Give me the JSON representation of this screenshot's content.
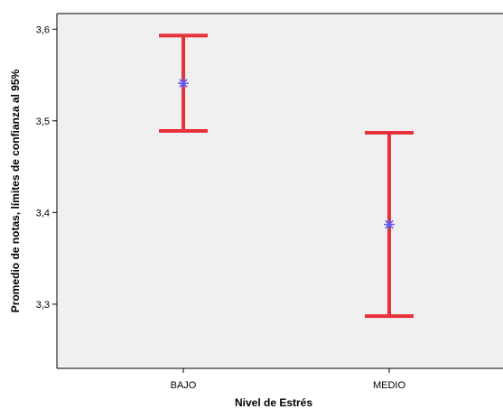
{
  "chart_data": {
    "type": "errorbar",
    "title": "",
    "xlabel": "Nivel de Estrés",
    "ylabel": "Promedio de notas, límites de confianza al 95%",
    "categories": [
      "BAJO",
      "MEDIO"
    ],
    "series": [
      {
        "mean": [
          3.541,
          3.387
        ],
        "lower": [
          3.489,
          3.287
        ],
        "upper": [
          3.593,
          3.487
        ]
      }
    ],
    "yticks": [
      "3,3",
      "3,4",
      "3,5",
      "3,6"
    ],
    "ylim": [
      3.23,
      3.617
    ],
    "grid": false,
    "colors": {
      "plot_background": "#f0f0f0",
      "error_bar": "#e8313a",
      "mean_marker": "#5b5bf0",
      "axis": "#000000"
    },
    "mean_marker_icon": "asterisk-icon"
  }
}
